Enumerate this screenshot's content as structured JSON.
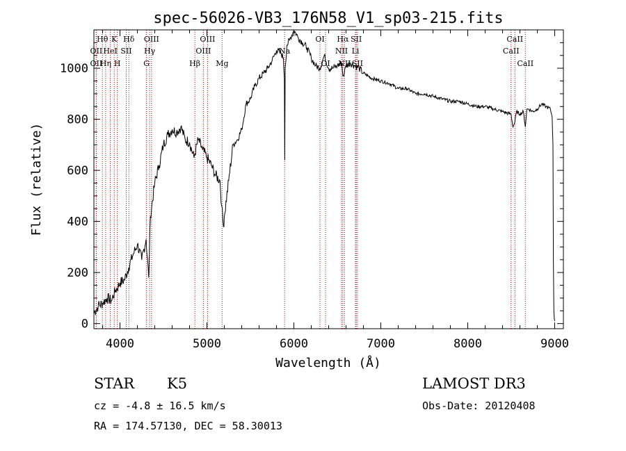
{
  "chart_data": {
    "type": "line",
    "title": "spec-56026-VB3_176N58_V1_sp03-215.fits",
    "xlabel": "Wavelength (Å)",
    "ylabel": "Flux (relative)",
    "xlim": [
      3700,
      9100
    ],
    "ylim": [
      -20,
      1150
    ],
    "xticks": [
      4000,
      5000,
      6000,
      7000,
      8000,
      9000
    ],
    "yticks": [
      0,
      200,
      400,
      600,
      800,
      1000
    ],
    "grid": false,
    "series": [
      {
        "name": "flux",
        "x": [
          3700,
          3750,
          3800,
          3850,
          3900,
          3950,
          4000,
          4050,
          4100,
          4150,
          4200,
          4250,
          4300,
          4330,
          4350,
          4400,
          4450,
          4500,
          4550,
          4600,
          4650,
          4700,
          4750,
          4800,
          4850,
          4900,
          4950,
          5000,
          5050,
          5100,
          5150,
          5170,
          5190,
          5200,
          5250,
          5300,
          5350,
          5400,
          5450,
          5500,
          5550,
          5600,
          5650,
          5700,
          5750,
          5800,
          5850,
          5880,
          5890,
          5895,
          5900,
          5920,
          5950,
          6000,
          6050,
          6100,
          6150,
          6200,
          6250,
          6300,
          6350,
          6400,
          6450,
          6500,
          6550,
          6563,
          6580,
          6600,
          6650,
          6700,
          6750,
          6800,
          6900,
          7000,
          7100,
          7200,
          7300,
          7400,
          7500,
          7600,
          7700,
          7800,
          7900,
          8000,
          8100,
          8200,
          8300,
          8400,
          8498,
          8520,
          8542,
          8560,
          8600,
          8640,
          8662,
          8680,
          8700,
          8750,
          8800,
          8850,
          8900,
          8950,
          8970,
          8980,
          8985,
          8990,
          8995,
          9000
        ],
        "values": [
          40,
          70,
          80,
          100,
          90,
          130,
          160,
          170,
          220,
          270,
          310,
          250,
          330,
          180,
          420,
          550,
          620,
          700,
          740,
          760,
          750,
          770,
          720,
          710,
          650,
          720,
          680,
          650,
          620,
          580,
          560,
          460,
          380,
          420,
          560,
          700,
          720,
          760,
          860,
          880,
          930,
          960,
          980,
          1000,
          1030,
          1070,
          1060,
          1040,
          960,
          640,
          1000,
          1090,
          1110,
          1150,
          1120,
          1100,
          1080,
          1040,
          1010,
          1000,
          1050,
          1000,
          1000,
          1010,
          1020,
          970,
          980,
          1010,
          1020,
          1010,
          1000,
          980,
          960,
          950,
          940,
          920,
          920,
          900,
          900,
          890,
          880,
          870,
          870,
          860,
          850,
          850,
          840,
          830,
          820,
          770,
          790,
          830,
          820,
          830,
          770,
          840,
          840,
          830,
          840,
          860,
          850,
          840,
          810,
          700,
          250,
          50,
          20,
          10
        ]
      }
    ],
    "lines": [
      {
        "label": "Hθ",
        "x": 3798,
        "row": 0
      },
      {
        "label": "K",
        "x": 3934,
        "row": 0
      },
      {
        "label": "Hδ",
        "x": 4102,
        "row": 0
      },
      {
        "label": "OII",
        "x": 3727,
        "row": 1
      },
      {
        "label": "HeI",
        "x": 3889,
        "row": 1
      },
      {
        "label": "SII",
        "x": 4072,
        "row": 1
      },
      {
        "label": "OII",
        "x": 3727,
        "row": 2
      },
      {
        "label": "Hη",
        "x": 3835,
        "row": 2
      },
      {
        "label": "H",
        "x": 3969,
        "row": 2
      },
      {
        "label": "OIII",
        "x": 4363,
        "row": 0
      },
      {
        "label": "Hγ",
        "x": 4341,
        "row": 1
      },
      {
        "label": "G",
        "x": 4305,
        "row": 2
      },
      {
        "label": "OIII",
        "x": 5007,
        "row": 0
      },
      {
        "label": "OIII",
        "x": 4959,
        "row": 1
      },
      {
        "label": "Hβ",
        "x": 4861,
        "row": 2
      },
      {
        "label": "Mg",
        "x": 5175,
        "row": 2
      },
      {
        "label": "Na",
        "x": 5893,
        "row": 1
      },
      {
        "label": "OI",
        "x": 6300,
        "row": 0
      },
      {
        "label": "OI",
        "x": 6364,
        "row": 2
      },
      {
        "label": "Hα",
        "x": 6563,
        "row": 0
      },
      {
        "label": "SII",
        "x": 6717,
        "row": 0
      },
      {
        "label": "NII",
        "x": 6548,
        "row": 1
      },
      {
        "label": "Li",
        "x": 6708,
        "row": 1
      },
      {
        "label": "NII",
        "x": 6583,
        "row": 2
      },
      {
        "label": "SII",
        "x": 6731,
        "row": 2
      },
      {
        "label": "CaII",
        "x": 8542,
        "row": 0
      },
      {
        "label": "CaII",
        "x": 8498,
        "row": 1
      },
      {
        "label": "CaII",
        "x": 8662,
        "row": 2
      }
    ]
  },
  "info": {
    "object_class": "STAR",
    "subclass": "K5",
    "survey": "LAMOST DR3",
    "redshift": "cz = -4.8 ± 16.5 km/s",
    "obs_date": "Obs-Date: 20120408",
    "coords": "RA = 174.57130, DEC =  58.30013"
  }
}
